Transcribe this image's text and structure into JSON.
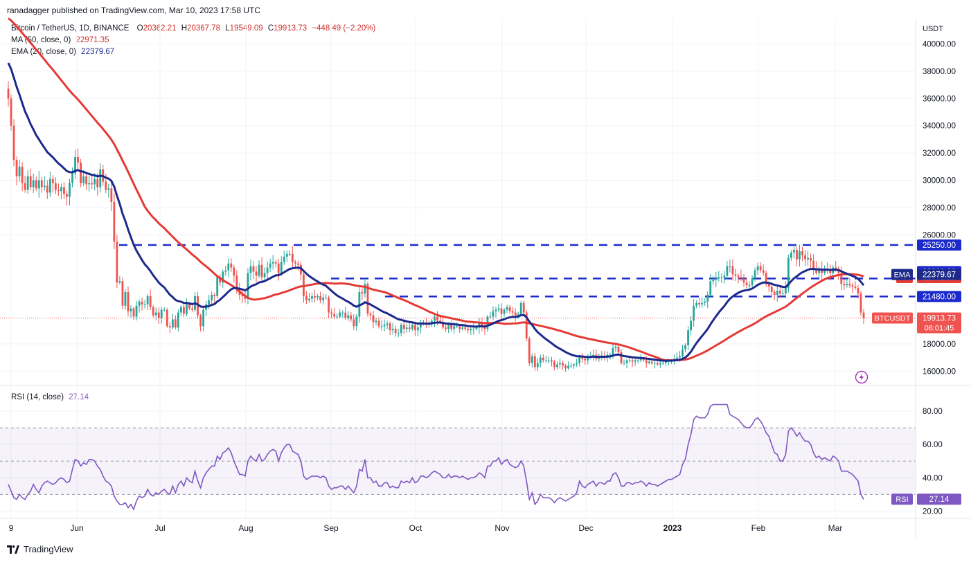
{
  "header": {
    "published_by": "ranadagger published on TradingView.com, Mar 10, 2023 17:58 UTC"
  },
  "legend": {
    "symbol": "Bitcoin / TetherUS, 1D, BINANCE",
    "o_label": "O",
    "o": "20362.21",
    "h_label": "H",
    "h": "20367.78",
    "l_label": "L",
    "l": "19549.09",
    "c_label": "C",
    "c": "19913.73",
    "change": "−448.49 (−2.20%)",
    "ma_label": "MA (50, close, 0)",
    "ma_value": "22971.35",
    "ema_label": "EMA (20, close, 0)",
    "ema_value": "22379.67"
  },
  "rsi_legend": {
    "label": "RSI (14, close)",
    "value": "27.14"
  },
  "footer": {
    "brand": "TradingView"
  },
  "chart_data": {
    "type": "candlestick",
    "currency_label": "USDT",
    "price_axis_ticks": [
      "40000.00",
      "38000.00",
      "36000.00",
      "34000.00",
      "32000.00",
      "30000.00",
      "28000.00",
      "26000.00",
      "18000.00",
      "16000.00"
    ],
    "price_range": [
      15000,
      41800
    ],
    "x_labels": [
      "9",
      "Jun",
      "Jul",
      "Aug",
      "Sep",
      "Oct",
      "Nov",
      "Dec",
      "2023",
      "Feb",
      "Mar"
    ],
    "colors": {
      "up": "#26a69a",
      "down": "#ef5350",
      "ma": "#e53a35",
      "ema": "#1c2a8c",
      "levels": "#1c2acc",
      "rsi": "#7e57c2"
    },
    "levels": [
      {
        "value": 25250,
        "label": "25250.00"
      },
      {
        "value": 22800,
        "label": "22800.00"
      },
      {
        "value": 21480,
        "label": "21480.00"
      }
    ],
    "badges": {
      "ma": {
        "name": "MA",
        "value": "22971.35"
      },
      "ema": {
        "name": "EMA",
        "value": "22379.67"
      },
      "price": {
        "name": "BTCUSDT",
        "value": "19913.73",
        "countdown": "06:01:45"
      }
    },
    "close_series": [
      36000,
      34000,
      31500,
      30300,
      31000,
      29800,
      29300,
      30300,
      29500,
      30000,
      29400,
      30000,
      29500,
      29600,
      29100,
      30100,
      29800,
      29300,
      29200,
      29500,
      29000,
      28800,
      29800,
      30500,
      31700,
      31300,
      29800,
      30300,
      29700,
      29800,
      29700,
      30100,
      29500,
      30800,
      29900,
      29300,
      29400,
      28400,
      25500,
      22500,
      22600,
      20800,
      21800,
      20400,
      20600,
      20000,
      20800,
      21100,
      20900,
      20900,
      21500,
      20700,
      20100,
      20300,
      19900,
      20500,
      20500,
      19300,
      19200,
      19800,
      19200,
      20300,
      20700,
      20200,
      20900,
      20600,
      20500,
      21500,
      20100,
      19300,
      20500,
      20900,
      21200,
      21600,
      21500,
      22900,
      22500,
      23300,
      23400,
      23900,
      23600,
      23000,
      22000,
      21600,
      21500,
      21300,
      23200,
      23700,
      23300,
      23000,
      23800,
      22900,
      23200,
      23600,
      23900,
      24000,
      23900,
      23200,
      24000,
      24400,
      24600,
      24600,
      24000,
      23900,
      23800,
      23100,
      21500,
      21200,
      21300,
      21500,
      21400,
      21500,
      21200,
      21400,
      21400,
      20300,
      20200,
      20000,
      20000,
      20300,
      20300,
      19900,
      20100,
      19800,
      19300,
      20000,
      21800,
      21700,
      22400,
      20200,
      20100,
      19600,
      19700,
      19300,
      19300,
      19400,
      19500,
      19000,
      19100,
      18800,
      18800,
      19400,
      19100,
      19200,
      19100,
      19400,
      19000,
      19200,
      19500,
      19500,
      19400,
      19500,
      19700,
      20000,
      19700,
      19600,
      19200,
      19100,
      19400,
      19100,
      19300,
      19300,
      19100,
      19200,
      19100,
      19000,
      19100,
      19100,
      19200,
      19500,
      19300,
      19100,
      20000,
      20000,
      20400,
      20500,
      20600,
      20200,
      20500,
      20700,
      20400,
      20300,
      20100,
      20200,
      21000,
      20300,
      18400,
      16600,
      17100,
      16300,
      16600,
      17000,
      16800,
      16800,
      16800,
      16700,
      16300,
      16500,
      16600,
      16400,
      16200,
      16400,
      16400,
      16500,
      16600,
      17100,
      16900,
      16800,
      17000,
      17100,
      17200,
      16900,
      17100,
      17100,
      17000,
      17200,
      17200,
      17700,
      17800,
      17400,
      16600,
      16600,
      16800,
      16800,
      16700,
      16800,
      16800,
      16900,
      16800,
      16600,
      16700,
      16600,
      16600,
      16500,
      16600,
      16600,
      16700,
      16800,
      16800,
      16900,
      17000,
      17100,
      17600,
      17900,
      19000,
      19700,
      20800,
      21000,
      20900,
      21000,
      21100,
      21600,
      22600,
      22700,
      22800,
      22900,
      22900,
      23000,
      23700,
      23700,
      23100,
      23000,
      22900,
      22800,
      22500,
      22300,
      22300,
      22800,
      23400,
      23700,
      23400,
      23200,
      22400,
      22200,
      21800,
      21600,
      21900,
      21700,
      21700,
      22100,
      24300,
      24700,
      24900,
      24200,
      24800,
      24500,
      24200,
      24300,
      24100,
      23500,
      23200,
      23500,
      23200,
      23500,
      23400,
      23200,
      23600,
      23500,
      23200,
      22400,
      22300,
      22400,
      22300,
      22200,
      22100,
      21700,
      20300,
      19900
    ],
    "rsi_range": [
      16,
      95
    ],
    "rsi_ticks": [
      "80.00",
      "60.00",
      "40.00",
      "20.00"
    ],
    "rsi_levels": [
      70,
      50,
      30
    ],
    "rsi_badge": {
      "name": "RSI",
      "value": "27.14"
    },
    "rsi_series": [
      36,
      32,
      28,
      27,
      30,
      28,
      27,
      30,
      32,
      36,
      33,
      31,
      35,
      37,
      38,
      37,
      36,
      37,
      39,
      40,
      39,
      37,
      38,
      45,
      51,
      50,
      47,
      49,
      48,
      51,
      51,
      50,
      47,
      45,
      41,
      38,
      37,
      35,
      29,
      26,
      24,
      24,
      25,
      22,
      24,
      21,
      26,
      29,
      28,
      29,
      33,
      30,
      29,
      31,
      30,
      32,
      33,
      31,
      30,
      35,
      31,
      36,
      38,
      35,
      40,
      38,
      37,
      44,
      38,
      34,
      40,
      43,
      45,
      47,
      47,
      53,
      51,
      55,
      56,
      58,
      55,
      50,
      46,
      42,
      42,
      41,
      50,
      53,
      51,
      50,
      54,
      50,
      51,
      54,
      56,
      57,
      56,
      50,
      55,
      58,
      60,
      60,
      56,
      55,
      54,
      50,
      41,
      39,
      40,
      41,
      41,
      41,
      40,
      41,
      40,
      35,
      33,
      34,
      34,
      35,
      35,
      33,
      35,
      33,
      31,
      35,
      45,
      44,
      51,
      40,
      40,
      37,
      38,
      35,
      35,
      37,
      37,
      34,
      35,
      34,
      34,
      38,
      37,
      38,
      37,
      40,
      37,
      38,
      41,
      41,
      40,
      41,
      43,
      44,
      43,
      42,
      40,
      40,
      42,
      40,
      41,
      41,
      40,
      41,
      40,
      39,
      40,
      40,
      41,
      43,
      42,
      40,
      47,
      47,
      50,
      50,
      52,
      48,
      50,
      51,
      48,
      47,
      46,
      47,
      50,
      47,
      38,
      27,
      31,
      24,
      26,
      30,
      28,
      28,
      28,
      27,
      25,
      27,
      28,
      27,
      26,
      27,
      28,
      29,
      31,
      38,
      35,
      34,
      36,
      37,
      38,
      35,
      37,
      37,
      36,
      38,
      38,
      42,
      43,
      40,
      35,
      35,
      37,
      37,
      36,
      37,
      37,
      38,
      37,
      35,
      37,
      36,
      36,
      35,
      36,
      37,
      38,
      39,
      39,
      40,
      41,
      42,
      48,
      51,
      60,
      66,
      75,
      77,
      76,
      76,
      76,
      78,
      83,
      84,
      84,
      84,
      84,
      84,
      84,
      78,
      77,
      76,
      75,
      73,
      71,
      70,
      70,
      72,
      75,
      76,
      74,
      71,
      67,
      65,
      60,
      55,
      54,
      50,
      50,
      54,
      68,
      70,
      68,
      65,
      67,
      64,
      62,
      62,
      60,
      55,
      52,
      53,
      51,
      52,
      51,
      50,
      53,
      52,
      50,
      44,
      44,
      44,
      43,
      42,
      40,
      38,
      30,
      27
    ]
  }
}
